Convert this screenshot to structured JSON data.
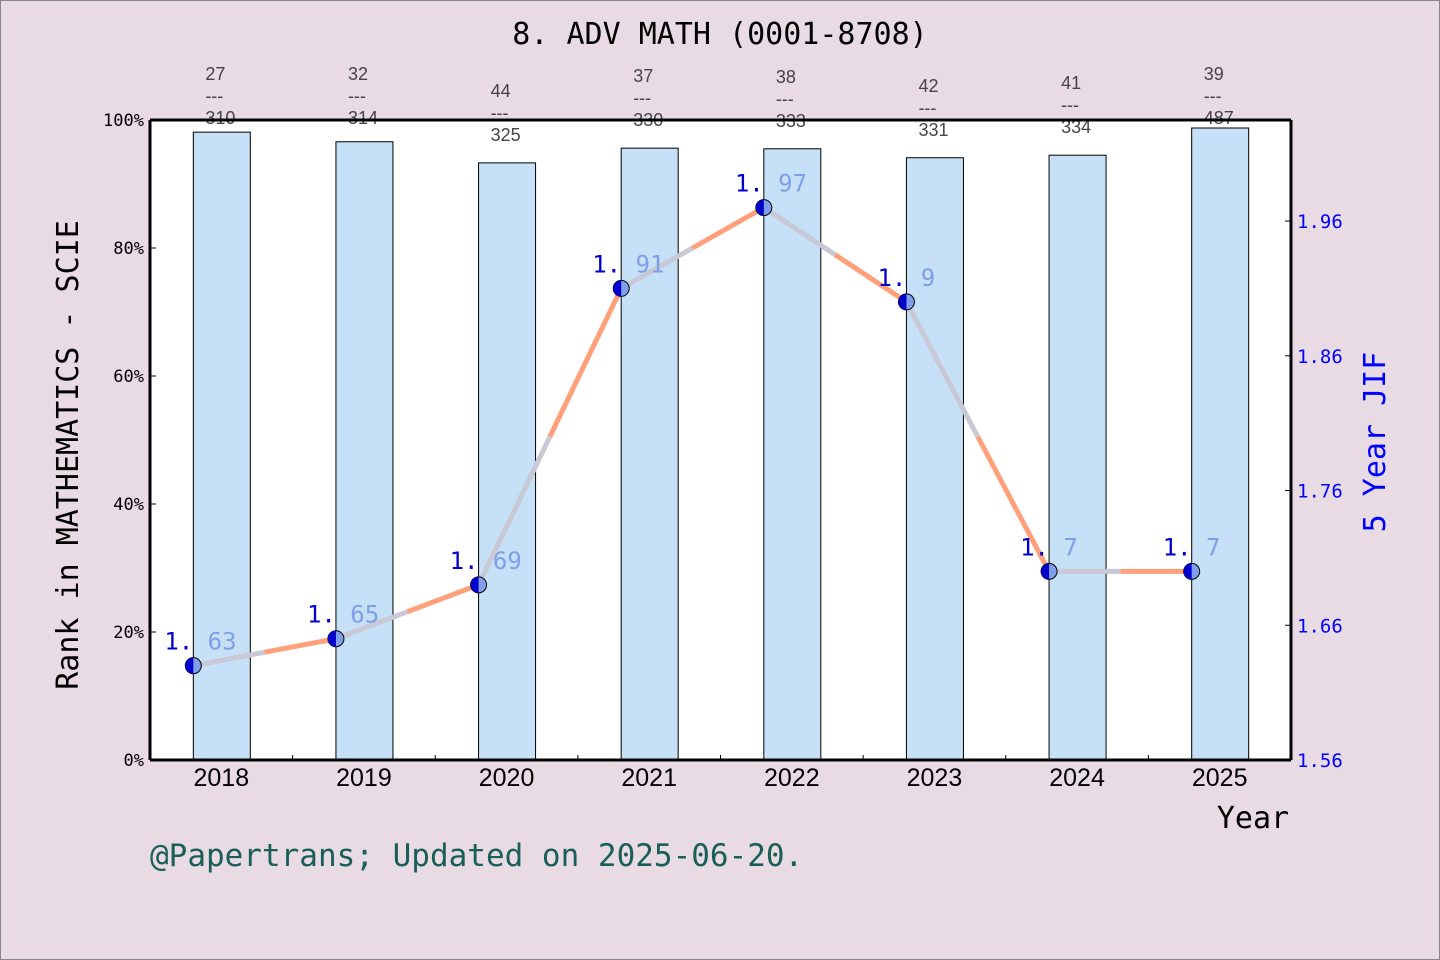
{
  "chart_data": {
    "type": "bar+line",
    "title": "8. ADV MATH (0001-8708)",
    "xlabel": "Year",
    "ylabel": "Rank in MATHEMATICS - SCIE",
    "y2label": "5 Year JIF",
    "categories": [
      "2018",
      "2019",
      "2020",
      "2021",
      "2022",
      "2023",
      "2024",
      "2025"
    ],
    "ylim": [
      0,
      100
    ],
    "y_ticks": [
      "0%",
      "20%",
      "40%",
      "60%",
      "80%",
      "100%"
    ],
    "y2lim": [
      1.56,
      2.035
    ],
    "y2_ticks": [
      "1.56",
      "1.66",
      "1.76",
      "1.86",
      "1.96"
    ],
    "series": [
      {
        "kind": "bar",
        "values": [
          98.1,
          96.6,
          93.3,
          95.6,
          95.5,
          94.1,
          94.5,
          98.75
        ]
      },
      {
        "kind": "line",
        "axis": "right",
        "values": [
          1.63,
          1.65,
          1.69,
          1.91,
          1.97,
          1.9,
          1.7,
          1.7
        ],
        "labels": [
          "1.63",
          "1.65",
          "1.69",
          "1.91",
          "1.97",
          "1.9",
          "1.7",
          "1.7"
        ]
      }
    ],
    "rank_labels": [
      {
        "rank": "27",
        "total": "310"
      },
      {
        "rank": "32",
        "total": "314"
      },
      {
        "rank": "44",
        "total": "325"
      },
      {
        "rank": "37",
        "total": "330"
      },
      {
        "rank": "38",
        "total": "333"
      },
      {
        "rank": "42",
        "total": "331"
      },
      {
        "rank": "41",
        "total": "334"
      },
      {
        "rank": "39",
        "total": "487"
      }
    ],
    "grid": false,
    "colors": {
      "bar": "#c5e0f7",
      "line_a": "#ffa07a",
      "line_b": "#c8c8d6",
      "marker_dark": "#0000cd",
      "marker_light": "#7f9fe8",
      "right_axis": "#0000ff"
    }
  },
  "footer": "@Papertrans; Updated on 2025-06-20."
}
